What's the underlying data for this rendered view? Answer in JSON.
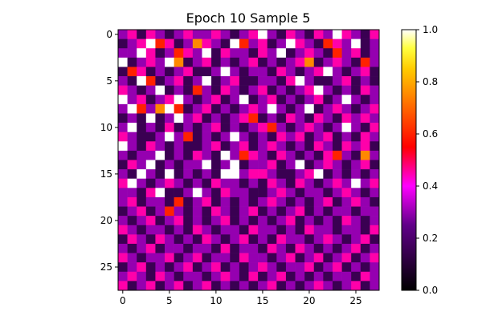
{
  "chart_data": {
    "type": "heatmap",
    "title": "Epoch 10 Sample 5",
    "xlabel": "",
    "ylabel": "",
    "colormap": "gnuplot2",
    "n_rows": 28,
    "n_cols": 28,
    "vmin": 0.0,
    "vmax": 1.0,
    "x_ticks": [
      "0",
      "5",
      "10",
      "15",
      "20",
      "25"
    ],
    "y_ticks": [
      "0",
      "5",
      "10",
      "15",
      "20",
      "25"
    ],
    "colorbar_ticks": [
      "0.0",
      "0.2",
      "0.4",
      "0.6",
      "0.8",
      "1.0"
    ],
    "grid": false,
    "note_values": "Cell values estimated from colors: 1.0 = white, 0.75 = light peach, 0.6 = orange, 0.45 = red-orange, 0.3 = red, 0.15 = magenta.",
    "values": [
      [
        0.3,
        0.45,
        0.15,
        0.45,
        0.3,
        0.15,
        0.3,
        0.45,
        0.3,
        0.3,
        0.45,
        0.3,
        0.15,
        0.3,
        0.45,
        1.0,
        0.3,
        0.15,
        0.45,
        0.3,
        0.15,
        0.45,
        0.3,
        1.0,
        0.45,
        0.3,
        0.15,
        0.45
      ],
      [
        0.15,
        0.3,
        0.45,
        1.0,
        0.6,
        0.45,
        0.15,
        0.3,
        0.75,
        0.45,
        0.3,
        0.15,
        1.0,
        0.6,
        0.3,
        0.45,
        0.15,
        0.3,
        1.0,
        0.45,
        0.3,
        0.15,
        0.6,
        0.45,
        0.3,
        1.0,
        0.15,
        0.3
      ],
      [
        0.3,
        0.3,
        1.0,
        0.45,
        0.15,
        0.3,
        0.6,
        0.45,
        0.3,
        1.0,
        0.15,
        0.45,
        0.3,
        0.3,
        0.15,
        0.45,
        0.3,
        1.0,
        0.15,
        0.3,
        0.45,
        0.3,
        0.15,
        0.6,
        0.3,
        0.45,
        0.15,
        0.3
      ],
      [
        1.0,
        0.15,
        0.3,
        0.45,
        0.3,
        1.0,
        0.75,
        0.15,
        0.3,
        0.45,
        0.15,
        0.3,
        0.15,
        0.3,
        0.45,
        0.15,
        0.3,
        0.15,
        0.3,
        0.45,
        0.75,
        0.15,
        0.3,
        0.45,
        0.3,
        0.15,
        0.6,
        0.3
      ],
      [
        0.15,
        0.6,
        0.45,
        0.15,
        0.3,
        0.15,
        0.3,
        0.45,
        0.15,
        0.15,
        0.3,
        1.0,
        0.3,
        0.15,
        0.3,
        0.3,
        0.15,
        0.45,
        0.3,
        0.15,
        0.3,
        0.45,
        1.0,
        0.3,
        0.15,
        0.3,
        0.45,
        0.15
      ],
      [
        0.3,
        0.15,
        1.0,
        0.6,
        0.15,
        0.3,
        0.45,
        0.15,
        0.3,
        1.0,
        0.15,
        0.3,
        0.45,
        0.15,
        0.15,
        0.3,
        0.3,
        0.15,
        0.45,
        1.0,
        0.3,
        0.15,
        0.15,
        0.3,
        0.45,
        0.15,
        0.3,
        0.15
      ],
      [
        0.45,
        0.3,
        0.15,
        0.3,
        1.0,
        0.15,
        0.3,
        0.15,
        0.6,
        0.3,
        0.15,
        0.45,
        0.3,
        0.15,
        0.3,
        0.45,
        0.15,
        0.3,
        0.15,
        0.3,
        0.45,
        1.0,
        0.3,
        0.15,
        0.3,
        0.15,
        0.45,
        0.3
      ],
      [
        1.0,
        0.3,
        0.45,
        0.15,
        0.3,
        0.45,
        1.0,
        0.3,
        0.15,
        0.3,
        0.45,
        0.15,
        0.3,
        1.0,
        0.15,
        0.3,
        0.45,
        0.15,
        0.3,
        0.15,
        0.3,
        0.45,
        0.15,
        0.3,
        1.0,
        0.3,
        0.15,
        0.3
      ],
      [
        0.3,
        1.0,
        0.6,
        0.3,
        0.75,
        1.0,
        0.6,
        0.15,
        0.3,
        0.45,
        0.15,
        0.3,
        0.15,
        0.3,
        0.45,
        0.3,
        1.0,
        0.3,
        0.15,
        0.3,
        1.0,
        0.15,
        0.3,
        0.45,
        0.3,
        0.15,
        0.3,
        0.45
      ],
      [
        0.15,
        0.3,
        0.15,
        1.0,
        0.15,
        0.3,
        1.0,
        0.3,
        0.45,
        0.15,
        0.3,
        0.15,
        0.3,
        0.45,
        0.6,
        0.15,
        0.3,
        0.15,
        0.45,
        0.3,
        0.15,
        0.45,
        0.3,
        0.15,
        0.45,
        0.3,
        0.45,
        0.3
      ],
      [
        0.3,
        1.0,
        0.15,
        0.3,
        0.15,
        0.45,
        0.15,
        0.3,
        0.15,
        0.3,
        0.45,
        0.15,
        0.3,
        0.15,
        0.3,
        0.45,
        0.6,
        0.3,
        0.15,
        0.3,
        0.45,
        0.3,
        0.15,
        0.3,
        1.0,
        0.3,
        0.15,
        0.45
      ],
      [
        0.45,
        0.3,
        0.15,
        0.15,
        0.3,
        1.0,
        0.3,
        0.6,
        0.15,
        0.3,
        0.15,
        0.3,
        1.0,
        0.3,
        0.15,
        0.3,
        0.15,
        0.45,
        0.3,
        0.45,
        0.15,
        0.3,
        0.45,
        0.15,
        0.3,
        0.15,
        0.45,
        0.3
      ],
      [
        1.0,
        0.3,
        0.15,
        0.45,
        0.3,
        0.15,
        0.3,
        0.15,
        0.15,
        0.3,
        0.45,
        0.15,
        0.3,
        0.45,
        0.15,
        0.3,
        0.45,
        0.3,
        0.15,
        0.3,
        0.15,
        0.45,
        0.3,
        0.15,
        0.45,
        0.3,
        0.45,
        0.15
      ],
      [
        0.3,
        0.15,
        0.3,
        0.3,
        1.0,
        0.15,
        0.3,
        0.15,
        0.45,
        0.3,
        0.15,
        1.0,
        0.3,
        0.6,
        0.45,
        0.3,
        0.15,
        0.45,
        0.3,
        0.15,
        0.3,
        0.15,
        0.45,
        0.6,
        0.3,
        0.15,
        0.75,
        0.3
      ],
      [
        0.15,
        0.45,
        0.3,
        1.0,
        0.15,
        0.3,
        0.15,
        0.3,
        0.3,
        1.0,
        0.15,
        0.3,
        1.0,
        0.15,
        0.3,
        0.3,
        0.45,
        0.15,
        0.3,
        1.0,
        0.15,
        0.3,
        0.45,
        0.3,
        0.15,
        0.3,
        0.45,
        0.15
      ],
      [
        0.3,
        0.15,
        1.0,
        0.3,
        0.15,
        1.0,
        0.15,
        0.3,
        0.15,
        0.3,
        0.15,
        1.0,
        1.0,
        0.3,
        0.45,
        0.45,
        0.3,
        0.15,
        0.15,
        0.3,
        0.45,
        1.0,
        0.15,
        0.3,
        0.15,
        0.3,
        0.15,
        0.3
      ],
      [
        0.45,
        1.0,
        0.3,
        0.15,
        0.3,
        0.45,
        0.3,
        0.15,
        0.3,
        0.15,
        0.45,
        0.3,
        0.3,
        0.15,
        0.3,
        0.15,
        0.45,
        0.3,
        0.15,
        0.45,
        0.3,
        0.15,
        0.3,
        0.45,
        0.3,
        1.0,
        0.3,
        0.45
      ],
      [
        0.3,
        0.3,
        0.15,
        0.45,
        1.0,
        0.15,
        0.15,
        0.3,
        1.0,
        0.3,
        0.15,
        0.45,
        0.3,
        0.3,
        0.15,
        0.15,
        0.3,
        0.45,
        0.3,
        0.15,
        0.3,
        0.3,
        0.15,
        0.3,
        0.45,
        0.3,
        0.15,
        0.3
      ],
      [
        0.3,
        0.45,
        0.15,
        0.3,
        0.3,
        0.15,
        0.6,
        0.15,
        0.3,
        0.45,
        0.15,
        0.3,
        0.15,
        0.3,
        0.15,
        0.3,
        0.45,
        0.3,
        0.15,
        0.3,
        0.15,
        0.3,
        0.45,
        0.15,
        0.3,
        0.45,
        0.3,
        0.15
      ],
      [
        0.15,
        0.3,
        0.45,
        0.15,
        0.3,
        0.6,
        0.3,
        0.15,
        0.3,
        0.15,
        0.45,
        0.3,
        0.15,
        0.3,
        0.45,
        0.15,
        0.3,
        0.15,
        0.3,
        0.45,
        0.15,
        0.3,
        0.15,
        0.3,
        0.3,
        0.15,
        0.3,
        0.3
      ],
      [
        0.3,
        0.15,
        0.3,
        0.45,
        0.15,
        0.3,
        0.45,
        0.15,
        0.3,
        0.15,
        0.3,
        0.45,
        0.15,
        0.3,
        0.15,
        0.3,
        0.15,
        0.3,
        0.45,
        0.15,
        0.3,
        0.15,
        0.3,
        0.15,
        0.45,
        0.3,
        0.15,
        0.3
      ],
      [
        0.45,
        0.3,
        0.15,
        0.3,
        0.3,
        0.15,
        0.3,
        0.15,
        0.45,
        0.3,
        0.15,
        0.3,
        0.3,
        0.15,
        0.45,
        0.3,
        0.3,
        0.15,
        0.3,
        0.15,
        0.45,
        0.3,
        0.3,
        0.15,
        0.3,
        0.3,
        0.15,
        0.45
      ],
      [
        0.15,
        0.45,
        0.3,
        0.15,
        0.45,
        0.3,
        0.15,
        0.3,
        0.15,
        0.45,
        0.3,
        0.15,
        0.3,
        0.45,
        0.15,
        0.3,
        0.15,
        0.45,
        0.3,
        0.3,
        0.15,
        0.3,
        0.45,
        0.3,
        0.15,
        0.3,
        0.45,
        0.15
      ],
      [
        0.3,
        0.15,
        0.3,
        0.45,
        0.15,
        0.3,
        0.3,
        0.15,
        0.3,
        0.3,
        0.15,
        0.45,
        0.15,
        0.3,
        0.3,
        0.15,
        0.45,
        0.3,
        0.15,
        0.45,
        0.3,
        0.15,
        0.3,
        0.15,
        0.3,
        0.45,
        0.15,
        0.3
      ],
      [
        0.45,
        0.3,
        0.15,
        0.3,
        0.3,
        0.45,
        0.15,
        0.3,
        0.45,
        0.15,
        0.3,
        0.3,
        0.15,
        0.45,
        0.3,
        0.3,
        0.15,
        0.3,
        0.45,
        0.15,
        0.3,
        0.45,
        0.15,
        0.3,
        0.45,
        0.15,
        0.3,
        0.45
      ],
      [
        0.15,
        0.3,
        0.45,
        0.15,
        0.3,
        0.15,
        0.3,
        0.45,
        0.15,
        0.3,
        0.45,
        0.15,
        0.3,
        0.15,
        0.3,
        0.45,
        0.3,
        0.15,
        0.3,
        0.3,
        0.45,
        0.15,
        0.3,
        0.45,
        0.15,
        0.3,
        0.15,
        0.3
      ],
      [
        0.3,
        0.45,
        0.3,
        0.15,
        0.45,
        0.3,
        0.15,
        0.3,
        0.3,
        0.15,
        0.3,
        0.45,
        0.3,
        0.15,
        0.45,
        0.15,
        0.3,
        0.45,
        0.15,
        0.3,
        0.15,
        0.3,
        0.15,
        0.3,
        0.3,
        0.15,
        0.45,
        0.3
      ],
      [
        0.45,
        0.15,
        0.3,
        0.45,
        0.15,
        0.3,
        0.45,
        0.15,
        0.3,
        0.45,
        0.15,
        0.3,
        0.15,
        0.3,
        0.15,
        0.3,
        0.45,
        0.15,
        0.3,
        0.15,
        0.3,
        0.45,
        0.3,
        0.15,
        0.3,
        0.45,
        0.15,
        0.3
      ]
    ]
  }
}
